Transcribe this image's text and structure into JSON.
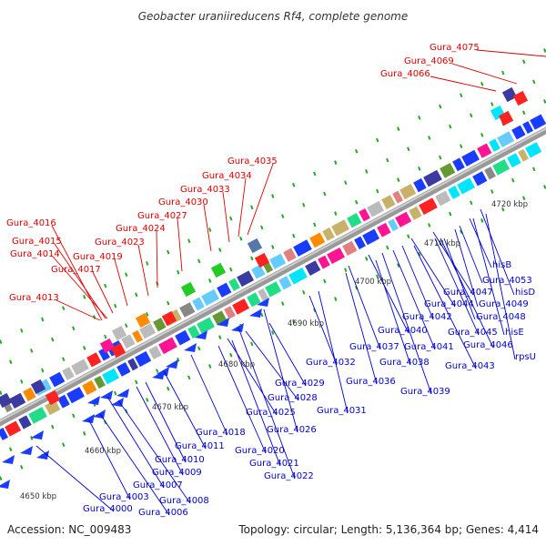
{
  "title": "Geobacter uraniireducens Rf4, complete genome",
  "accession": "Accession: NC_009483",
  "summary": "Topology: circular; Length: 5,136,364 bp; Genes: 4,414",
  "colors": {
    "forward_label": "#dd0000",
    "reverse_label": "#0000cc",
    "backbone": "#999999",
    "tick": "#22aa22"
  },
  "kbp_labels": [
    "4650 kbp",
    "4660 kbp",
    "4670 kbp",
    "4680 kbp",
    "4690 kbp",
    "4700 kbp",
    "4710 kbp",
    "4720 kbp"
  ],
  "forward_genes": [
    "Gura_4075",
    "Gura_4069",
    "Gura_4066",
    "Gura_4035",
    "Gura_4034",
    "Gura_4033",
    "Gura_4030",
    "Gura_4027",
    "Gura_4024",
    "Gura_4023",
    "Gura_4019",
    "Gura_4016",
    "Gura_4015",
    "Gura_4014",
    "Gura_4017",
    "Gura_4013"
  ],
  "reverse_genes": [
    "hisB",
    "Gura_4053",
    "hisD",
    "Gura_4047",
    "Gura_4049",
    "Gura_4044",
    "Gura_4048",
    "Gura_4042",
    "Gura_4045",
    "hisE",
    "Gura_4040",
    "Gura_4046",
    "Gura_4037",
    "Gura_4041",
    "rpsU",
    "Gura_4038",
    "Gura_4043",
    "Gura_4032",
    "Gura_4036",
    "Gura_4039",
    "Gura_4029",
    "Gura_4031",
    "Gura_4028",
    "Gura_4025",
    "Gura_4026",
    "Gura_4018",
    "Gura_4011",
    "Gura_4020",
    "Gura_4010",
    "Gura_4021",
    "Gura_4009",
    "Gura_4022",
    "Gura_4007",
    "Gura_4003",
    "Gura_4008",
    "Gura_4000",
    "Gura_4006"
  ]
}
